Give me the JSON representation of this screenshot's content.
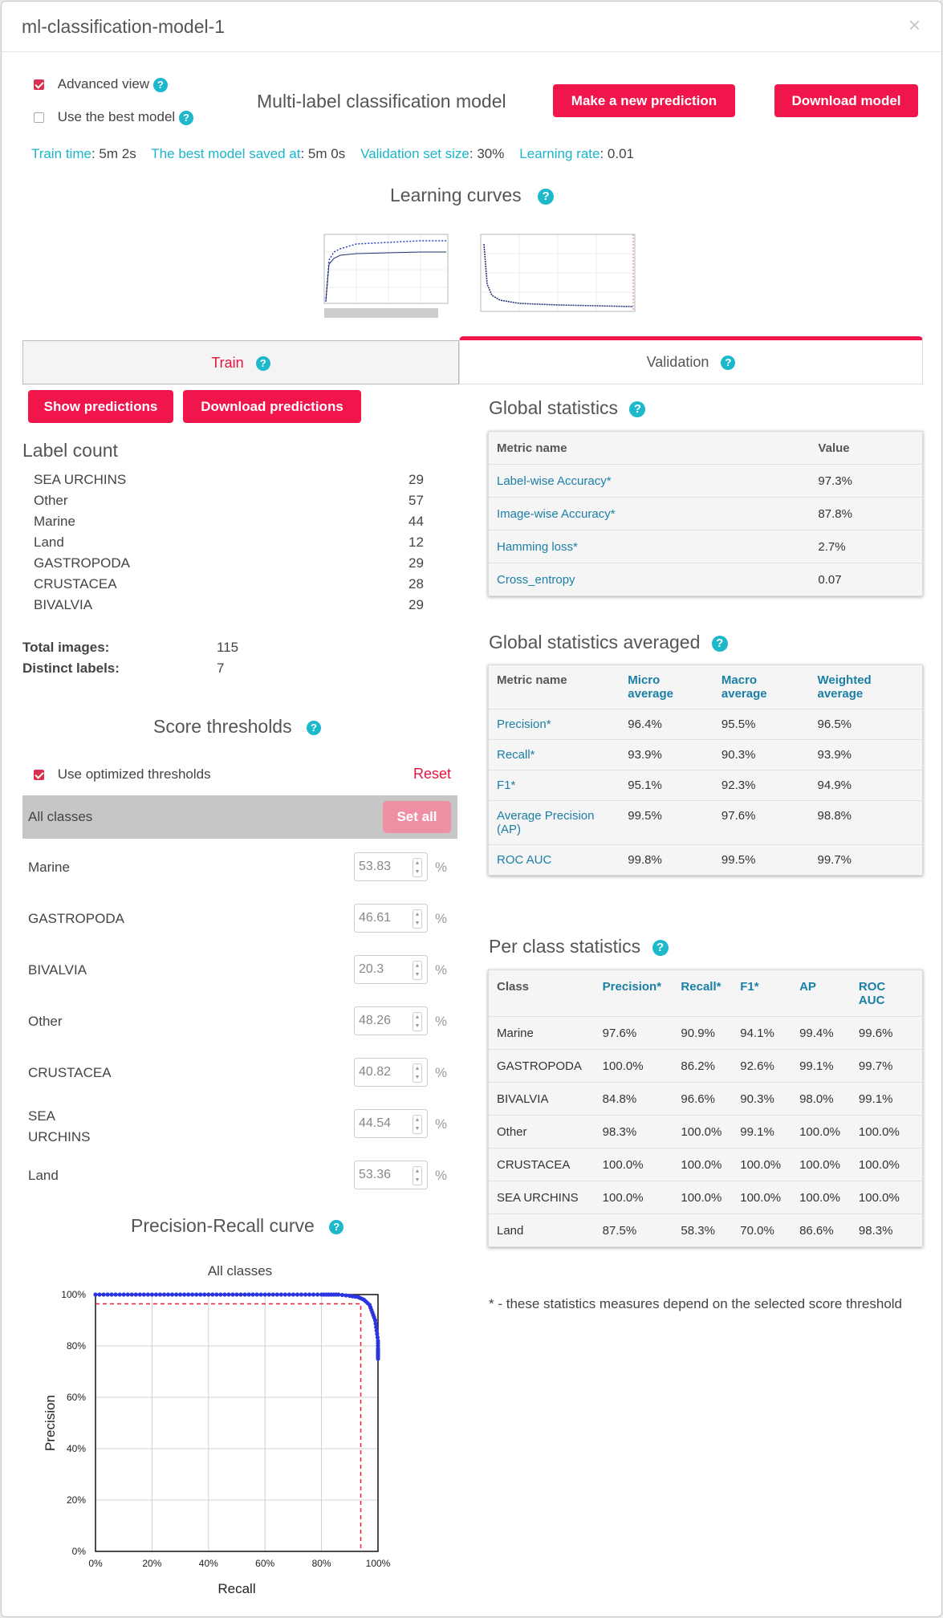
{
  "header": {
    "title": "ml-classification-model-1",
    "close": "×"
  },
  "options": {
    "advanced_view": "Advanced view",
    "best_model": "Use the best model"
  },
  "model_title": "Multi-label classification model",
  "buttons": {
    "new_prediction": "Make a new prediction",
    "download_model": "Download model",
    "show_predictions": "Show predictions",
    "download_predictions": "Download predictions",
    "set_all": "Set all"
  },
  "info": [
    {
      "label": "Train time",
      "value": ": 5m 2s"
    },
    {
      "label": "The best model saved at",
      "value": ": 5m 0s"
    },
    {
      "label": "Validation set size",
      "value": ": 30%"
    },
    {
      "label": "Learning rate",
      "value": ": 0.01"
    }
  ],
  "learning_curves": {
    "title": "Learning curves"
  },
  "tabs": {
    "train": "Train",
    "validation": "Validation"
  },
  "label_count": {
    "title": "Label count",
    "rows": [
      {
        "name": "SEA URCHINS",
        "count": "29"
      },
      {
        "name": "Other",
        "count": "57"
      },
      {
        "name": "Marine",
        "count": "44"
      },
      {
        "name": "Land",
        "count": "12"
      },
      {
        "name": "GASTROPODA",
        "count": "29"
      },
      {
        "name": "CRUSTACEA",
        "count": "28"
      },
      {
        "name": "BIVALVIA",
        "count": "29"
      }
    ],
    "total_label": "Total images:",
    "total_value": "115",
    "distinct_label": "Distinct labels:",
    "distinct_value": "7"
  },
  "thresholds": {
    "title": "Score thresholds",
    "use_optimized": "Use optimized thresholds",
    "reset": "Reset",
    "all_classes": "All classes",
    "pct": "%",
    "rows": [
      {
        "name": "Marine",
        "value": "53.83"
      },
      {
        "name": "GASTROPODA",
        "value": "46.61"
      },
      {
        "name": "BIVALVIA",
        "value": "20.3"
      },
      {
        "name": "Other",
        "value": "48.26"
      },
      {
        "name": "CRUSTACEA",
        "value": "40.82"
      },
      {
        "name": "SEA URCHINS",
        "value": "44.54"
      },
      {
        "name": "Land",
        "value": "53.36"
      }
    ]
  },
  "pr_curve": {
    "title": "Precision-Recall curve",
    "subtitle": "All classes"
  },
  "global_stats": {
    "title": "Global statistics",
    "headers": [
      "Metric name",
      "Value"
    ],
    "rows": [
      [
        "Label-wise Accuracy*",
        "97.3%"
      ],
      [
        "Image-wise Accuracy*",
        "87.8%"
      ],
      [
        "Hamming loss*",
        "2.7%"
      ],
      [
        "Cross_entropy",
        "0.07"
      ]
    ]
  },
  "global_avg": {
    "title": "Global statistics averaged",
    "headers": [
      "Metric name",
      "Micro average",
      "Macro average",
      "Weighted average"
    ],
    "rows": [
      [
        "Precision*",
        "96.4%",
        "95.5%",
        "96.5%"
      ],
      [
        "Recall*",
        "93.9%",
        "90.3%",
        "93.9%"
      ],
      [
        "F1*",
        "95.1%",
        "92.3%",
        "94.9%"
      ],
      [
        "Average Precision (AP)",
        "99.5%",
        "97.6%",
        "98.8%"
      ],
      [
        "ROC AUC",
        "99.8%",
        "99.5%",
        "99.7%"
      ]
    ]
  },
  "per_class": {
    "title": "Per class statistics",
    "headers": [
      "Class",
      "Precision*",
      "Recall*",
      "F1*",
      "AP",
      "ROC AUC"
    ],
    "rows": [
      [
        "Marine",
        "97.6%",
        "90.9%",
        "94.1%",
        "99.4%",
        "99.6%"
      ],
      [
        "GASTROPODA",
        "100.0%",
        "86.2%",
        "92.6%",
        "99.1%",
        "99.7%"
      ],
      [
        "BIVALVIA",
        "84.8%",
        "96.6%",
        "90.3%",
        "98.0%",
        "99.1%"
      ],
      [
        "Other",
        "98.3%",
        "100.0%",
        "99.1%",
        "100.0%",
        "100.0%"
      ],
      [
        "CRUSTACEA",
        "100.0%",
        "100.0%",
        "100.0%",
        "100.0%",
        "100.0%"
      ],
      [
        "SEA URCHINS",
        "100.0%",
        "100.0%",
        "100.0%",
        "100.0%",
        "100.0%"
      ],
      [
        "Land",
        "87.5%",
        "58.3%",
        "70.0%",
        "86.6%",
        "98.3%"
      ]
    ]
  },
  "footnote": "* - these statistics measures depend on the selected score threshold",
  "chart_data": {
    "type": "line",
    "title": "All classes",
    "xlabel": "Recall",
    "ylabel": "Precision",
    "x_ticks": [
      "0%",
      "20%",
      "40%",
      "60%",
      "80%",
      "100%"
    ],
    "y_ticks": [
      "0%",
      "20%",
      "40%",
      "60%",
      "80%",
      "100%"
    ],
    "xlim": [
      0,
      1
    ],
    "ylim": [
      0,
      1
    ],
    "grid": true,
    "series": [
      {
        "x": [
          0,
          0.1,
          0.2,
          0.3,
          0.4,
          0.5,
          0.6,
          0.7,
          0.8,
          0.86,
          0.9,
          0.93,
          0.95,
          0.97,
          0.98,
          0.99,
          0.995,
          1.0,
          1.0,
          1.0,
          1.0
        ],
        "y": [
          1,
          1,
          1,
          1,
          1,
          1,
          1,
          1,
          1,
          1,
          0.995,
          0.99,
          0.98,
          0.96,
          0.93,
          0.9,
          0.86,
          0.82,
          0.79,
          0.77,
          0.75
        ],
        "color": "#2a35e0"
      }
    ],
    "threshold_point": {
      "x": 0.939,
      "y": 0.964,
      "color": "#e8203a"
    }
  }
}
